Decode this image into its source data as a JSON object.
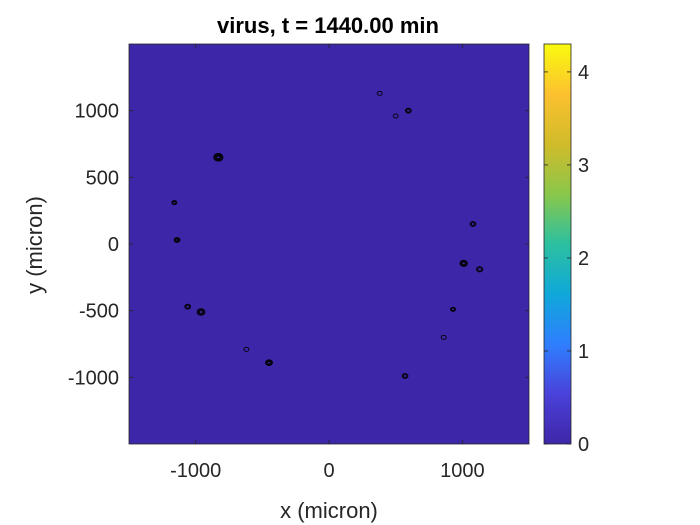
{
  "chart_data": {
    "type": "heatmap",
    "title": "virus, t = 1440.00 min",
    "xlabel": "x (micron)",
    "ylabel": "y (micron)",
    "xlim": [
      -1500,
      1500
    ],
    "ylim": [
      -1500,
      1500
    ],
    "x_ticks": [
      -1000,
      0,
      1000
    ],
    "y_ticks": [
      -1000,
      -500,
      0,
      500,
      1000
    ],
    "x_tick_labels": [
      "-1000",
      "0",
      "1000"
    ],
    "y_tick_labels": [
      "-1000",
      "-500",
      "0",
      "500",
      "1000"
    ],
    "colorbar": {
      "colormap": "parula",
      "range": [
        0,
        4.3
      ],
      "ticks": [
        0,
        1,
        2,
        3,
        4
      ],
      "tick_labels": [
        "0",
        "1",
        "2",
        "3",
        "4"
      ],
      "colors": [
        "#3e26a8",
        "#4a42da",
        "#2f7fff",
        "#0fa8d9",
        "#2cc0a0",
        "#8ac74a",
        "#d1bb2a",
        "#fcc12f",
        "#f9fb0e"
      ]
    },
    "background_color": "#3e26a8",
    "contour_color": "#000000",
    "grid": false,
    "legend": "none",
    "contour_spots": [
      {
        "x": 380,
        "y": 1130,
        "r": 18,
        "rings": 1
      },
      {
        "x": 500,
        "y": 960,
        "r": 10,
        "rings": 1
      },
      {
        "x": 595,
        "y": 1000,
        "r": 22,
        "rings": 2
      },
      {
        "x": -830,
        "y": 650,
        "r": 35,
        "rings": 4
      },
      {
        "x": -1160,
        "y": 310,
        "r": 14,
        "rings": 2
      },
      {
        "x": -1140,
        "y": 30,
        "r": 22,
        "rings": 3
      },
      {
        "x": 1080,
        "y": 150,
        "r": 22,
        "rings": 2
      },
      {
        "x": 1010,
        "y": -145,
        "r": 28,
        "rings": 3
      },
      {
        "x": 1130,
        "y": -190,
        "r": 24,
        "rings": 2
      },
      {
        "x": -1060,
        "y": -470,
        "r": 22,
        "rings": 2
      },
      {
        "x": -960,
        "y": -510,
        "r": 30,
        "rings": 3
      },
      {
        "x": 930,
        "y": -490,
        "r": 16,
        "rings": 2
      },
      {
        "x": 860,
        "y": -700,
        "r": 14,
        "rings": 1
      },
      {
        "x": -620,
        "y": -790,
        "r": 18,
        "rings": 1
      },
      {
        "x": -450,
        "y": -890,
        "r": 26,
        "rings": 3
      },
      {
        "x": 570,
        "y": -990,
        "r": 22,
        "rings": 2
      }
    ]
  }
}
